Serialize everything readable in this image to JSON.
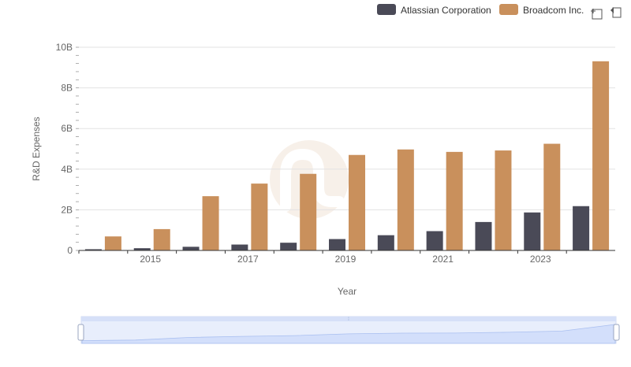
{
  "toolbar": {
    "icons": [
      "zoom-select-icon",
      "zoom-reset-icon"
    ]
  },
  "chart_data": {
    "type": "bar",
    "title": "",
    "xlabel": "Year",
    "ylabel": "R&D Expenses",
    "x": [
      2014,
      2015,
      2016,
      2017,
      2018,
      2019,
      2020,
      2021,
      2022,
      2023,
      2024
    ],
    "x_tick_labels": [
      "2015",
      "2017",
      "2019",
      "2021",
      "2023"
    ],
    "y_tick_labels": [
      "0",
      "2B",
      "4B",
      "6B",
      "8B",
      "10B"
    ],
    "ylim": [
      0,
      10000000000
    ],
    "grid": true,
    "legend_position": "top-right",
    "series": [
      {
        "name": "Atlassian Corporation",
        "color": "#4a4a57",
        "values": [
          60000000,
          110000000,
          180000000,
          290000000,
          380000000,
          560000000,
          750000000,
          950000000,
          1400000000,
          1870000000,
          2180000000
        ]
      },
      {
        "name": "Broadcom Inc.",
        "color": "#c9905c",
        "values": [
          690000000,
          1050000000,
          2670000000,
          3290000000,
          3770000000,
          4700000000,
          4970000000,
          4850000000,
          4920000000,
          5250000000,
          9310000000
        ]
      }
    ]
  },
  "slider": {
    "handle_label": "⁞"
  }
}
